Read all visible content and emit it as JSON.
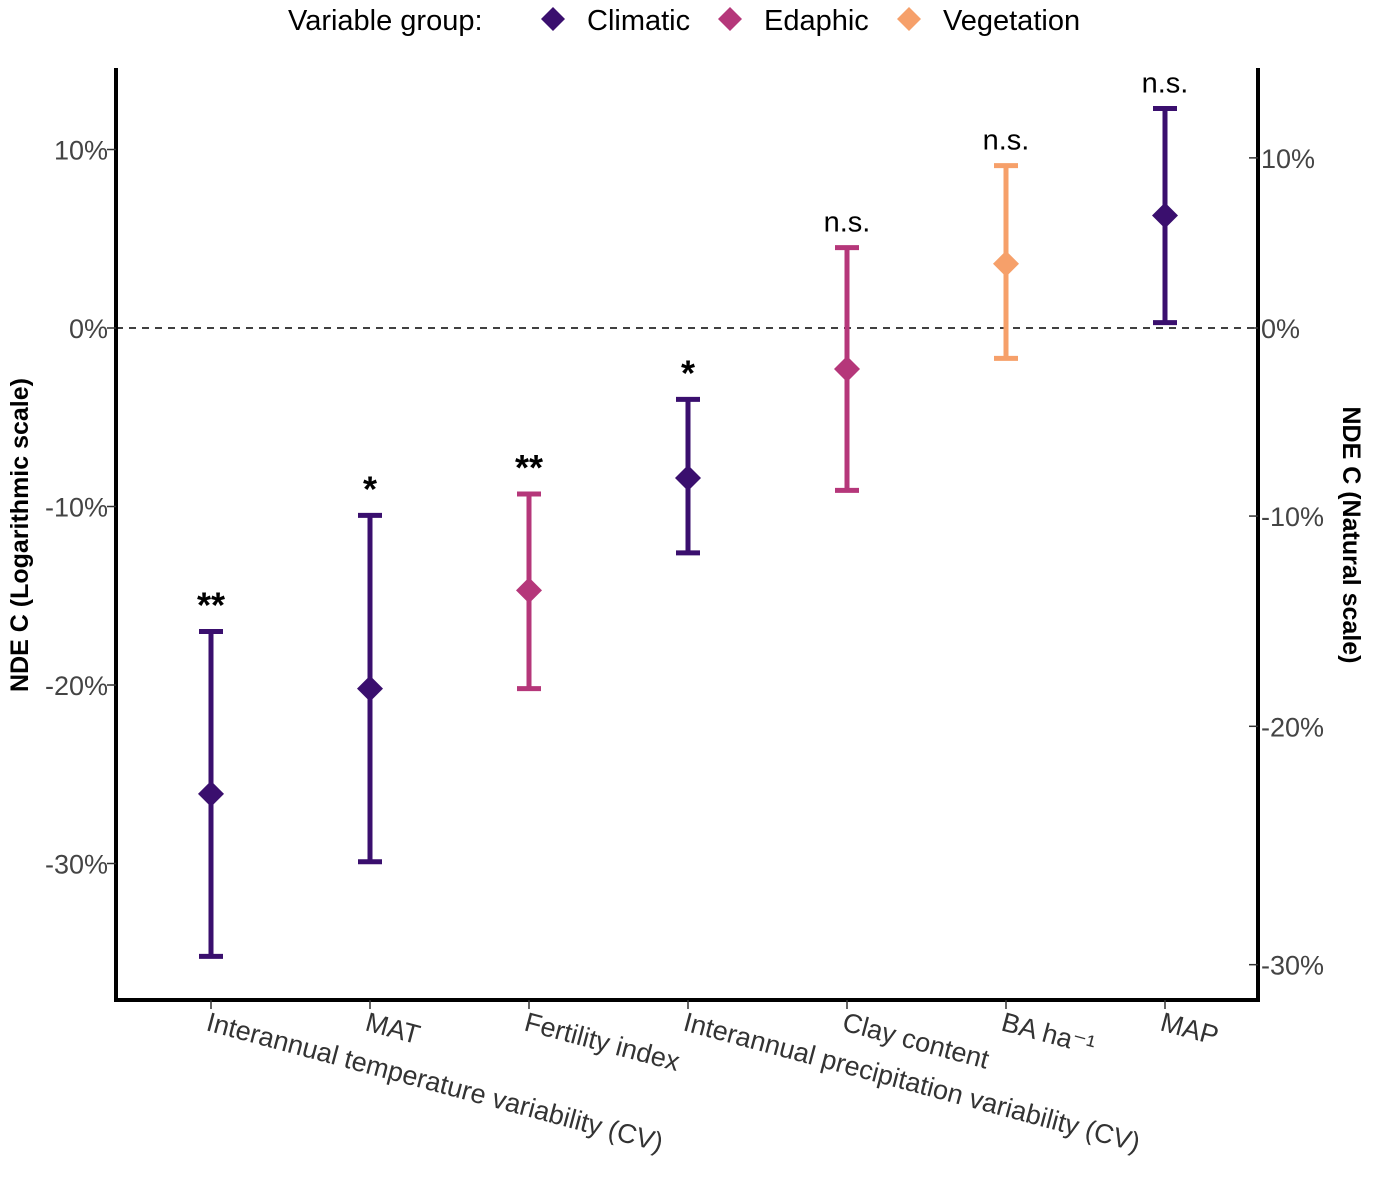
{
  "chart_data": {
    "type": "scatter",
    "subtype": "point-errorbar",
    "legend": {
      "title": "Variable group:",
      "placement": "top",
      "entries": [
        {
          "name": "Climatic",
          "color": "#3a0f6e"
        },
        {
          "name": "Edaphic",
          "color": "#b5377a"
        },
        {
          "name": "Vegetation",
          "color": "#f6a06a"
        }
      ]
    },
    "ylabel_left": "NDE C (Logarithmic scale)",
    "ylabel_right": "NDE C (Natural scale)",
    "ylim": [
      -37.6,
      14.6
    ],
    "left_ticks": [
      {
        "value": 10,
        "label": "10%"
      },
      {
        "value": 0,
        "label": "0%"
      },
      {
        "value": -10,
        "label": "-10%"
      },
      {
        "value": -20,
        "label": "-20%"
      },
      {
        "value": -30,
        "label": "-30%"
      }
    ],
    "right_ticks": [
      {
        "value": 10,
        "label": "10%"
      },
      {
        "value": 0,
        "label": "0%"
      },
      {
        "value": -10,
        "label": "-10%"
      },
      {
        "value": -20,
        "label": "-20%"
      },
      {
        "value": -30,
        "label": "-30%"
      }
    ],
    "reference_line": 0,
    "points": [
      {
        "category": "Interannual temperature variability (CV)",
        "group": "Climatic",
        "estimate": -26.1,
        "lower": -35.2,
        "upper": -17.0,
        "significance": "**"
      },
      {
        "category": "MAT",
        "group": "Climatic",
        "estimate": -20.2,
        "lower": -29.9,
        "upper": -10.5,
        "significance": "*"
      },
      {
        "category": "Fertility index",
        "group": "Edaphic",
        "estimate": -14.7,
        "lower": -20.2,
        "upper": -9.3,
        "significance": "**"
      },
      {
        "category": "Interannual precipitation variability (CV)",
        "group": "Climatic",
        "estimate": -8.4,
        "lower": -12.6,
        "upper": -4.0,
        "significance": "*"
      },
      {
        "category": "Clay content",
        "group": "Edaphic",
        "estimate": -2.3,
        "lower": -9.1,
        "upper": 4.5,
        "significance": "n.s."
      },
      {
        "category": "BA ha⁻¹",
        "group": "Vegetation",
        "estimate": 3.6,
        "lower": -1.7,
        "upper": 9.1,
        "significance": "n.s."
      },
      {
        "category": "MAP",
        "group": "Climatic",
        "estimate": 6.3,
        "lower": 0.3,
        "upper": 12.3,
        "significance": "n.s."
      }
    ]
  }
}
